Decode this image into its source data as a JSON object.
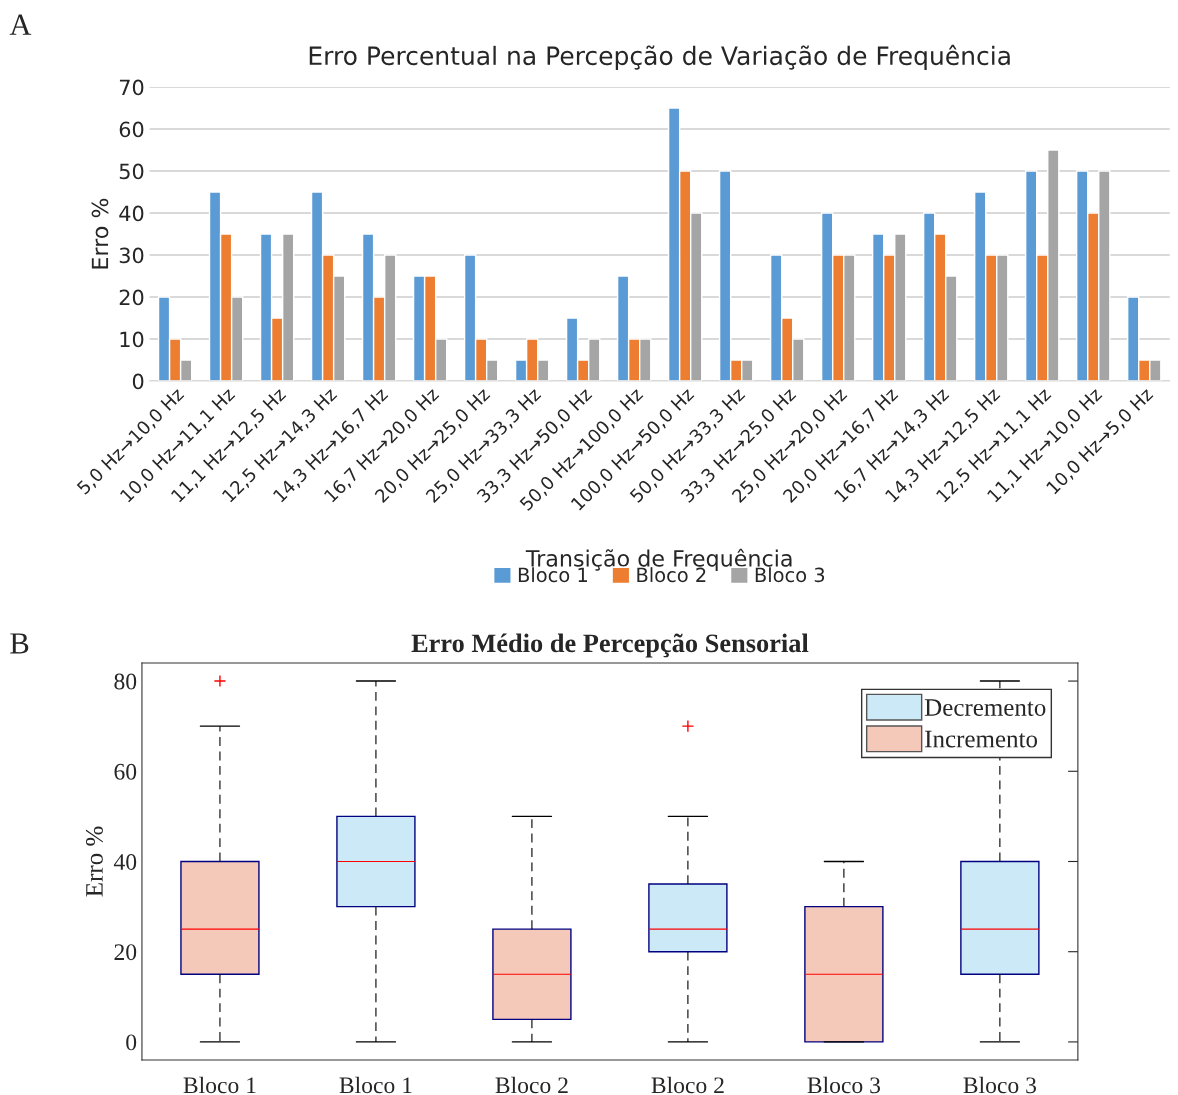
{
  "chart_data": [
    {
      "type": "bar",
      "title": "Erro Percentual na Percepção de Variação de Frequência",
      "xlabel": "Transição de Frequência",
      "ylabel": "Erro %",
      "categories": [
        "5,0 Hz→10,0 Hz",
        "10,0 Hz→11,1 Hz",
        "11,1 Hz→12,5 Hz",
        "12,5 Hz→14,3 Hz",
        "14,3 Hz→16,7 Hz",
        "16,7 Hz→20,0 Hz",
        "20,0 Hz→25,0 Hz",
        "25,0 Hz→33,3 Hz",
        "33,3 Hz→50,0 Hz",
        "50,0 Hz→100,0 Hz",
        "100,0 Hz→50,0 Hz",
        "50,0 Hz→33,3 Hz",
        "33,3 Hz→25,0 Hz",
        "25,0 Hz→20,0 Hz",
        "20,0 Hz→16,7 Hz",
        "16,7 Hz→14,3 Hz",
        "14,3 Hz→12,5 Hz",
        "12,5 Hz→11,1 Hz",
        "11,1 Hz→10,0 Hz",
        "10,0 Hz→5,0 Hz"
      ],
      "series": [
        {
          "name": "Bloco 1",
          "color": "#5b9bd5",
          "values": [
            20,
            45,
            35,
            45,
            35,
            25,
            30,
            5,
            15,
            25,
            65,
            50,
            30,
            40,
            35,
            40,
            45,
            50,
            50,
            20
          ]
        },
        {
          "name": "Bloco 2",
          "color": "#ed7d31",
          "values": [
            10,
            35,
            15,
            30,
            20,
            25,
            10,
            10,
            5,
            10,
            50,
            5,
            15,
            30,
            30,
            35,
            30,
            30,
            40,
            5
          ]
        },
        {
          "name": "Bloco 3",
          "color": "#a5a5a5",
          "values": [
            5,
            20,
            35,
            25,
            30,
            10,
            5,
            5,
            10,
            10,
            40,
            5,
            10,
            30,
            35,
            25,
            30,
            55,
            50,
            5
          ]
        }
      ],
      "ylim": [
        0,
        70
      ],
      "yticks": [
        0,
        10,
        20,
        30,
        40,
        50,
        60,
        70
      ],
      "grid": "y",
      "legend": "bottom",
      "annotations": [
        "A"
      ]
    },
    {
      "type": "box",
      "title": "Erro Médio de Percepção Sensorial",
      "ylabel": "Erro %",
      "categories": [
        "Bloco 1",
        "Bloco 1",
        "Bloco 2",
        "Bloco 2",
        "Bloco 3",
        "Bloco 3"
      ],
      "series": [
        {
          "name": "Decremento",
          "color": "#cce9f7",
          "boxes": [
            null,
            {
              "low": 0,
              "q1": 30,
              "median": 40,
              "q3": 50,
              "high": 80
            },
            null,
            {
              "low": 0,
              "q1": 20,
              "median": 25,
              "q3": 35,
              "high": 50,
              "outliers": [
                70
              ]
            },
            null,
            {
              "low": 0,
              "q1": 15,
              "median": 25,
              "q3": 40,
              "high": 80
            }
          ]
        },
        {
          "name": "Incremento",
          "color": "#f4c9b9",
          "boxes": [
            {
              "low": 0,
              "q1": 15,
              "median": 25,
              "q3": 40,
              "high": 70,
              "outliers": [
                80
              ]
            },
            null,
            {
              "low": 0,
              "q1": 5,
              "median": 15,
              "q3": 25,
              "high": 50
            },
            null,
            {
              "low": 0,
              "q1": 0,
              "median": 15,
              "q3": 30,
              "high": 40
            },
            null
          ]
        }
      ],
      "ylim": [
        -4,
        84
      ],
      "yticks": [
        0,
        20,
        40,
        60,
        80
      ],
      "grid": false,
      "legend": "top right",
      "annotations": [
        "B"
      ]
    }
  ]
}
